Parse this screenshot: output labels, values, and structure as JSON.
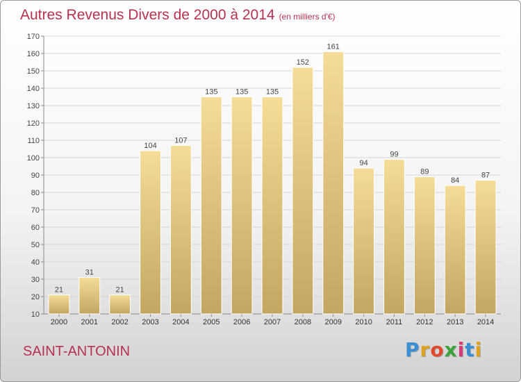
{
  "header": {
    "title": "Autres Revenus Divers de 2000 à 2014",
    "subtitle": "(en milliers d'€)"
  },
  "footer": {
    "commune": "SAINT-ANTONIN",
    "logo": "Proxiti"
  },
  "colors": {
    "title": "#b8314f",
    "bar_top": "#f5dc98",
    "bar_bottom": "#c2a661",
    "bar_edge": "#ffffff",
    "grid": "#d6d6d6"
  },
  "chart_data": {
    "type": "bar",
    "title": "Autres Revenus Divers de 2000 à 2014",
    "subtitle": "(en milliers d'€)",
    "categories": [
      "2000",
      "2001",
      "2002",
      "2003",
      "2004",
      "2005",
      "2006",
      "2007",
      "2008",
      "2009",
      "2010",
      "2011",
      "2012",
      "2013",
      "2014"
    ],
    "values": [
      21,
      31,
      21,
      104,
      107,
      135,
      135,
      135,
      152,
      161,
      94,
      99,
      89,
      84,
      87
    ],
    "ylim": [
      10,
      170
    ],
    "yticks": [
      10,
      20,
      30,
      40,
      50,
      60,
      70,
      80,
      90,
      100,
      110,
      120,
      130,
      140,
      150,
      160,
      170
    ],
    "grid": true,
    "legend": "none"
  }
}
